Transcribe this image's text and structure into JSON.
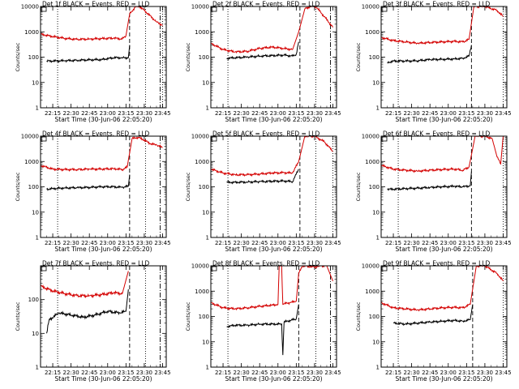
{
  "figure": {
    "xlabel": "Start Time (30-Jun-06 22:05:20)",
    "ylabel": "Counts/sec",
    "xticks": [
      "22:15",
      "22:30",
      "22:45",
      "23:00",
      "23:15",
      "23:30",
      "23:45"
    ]
  },
  "chart_data": [
    {
      "type": "line",
      "title": "Det 1f BLACK = Events, RED = LLD",
      "ylim": [
        1,
        10000
      ],
      "yscale": "log",
      "ytick_labels": [
        "1",
        "10",
        "100",
        "1000",
        "10000"
      ],
      "vlines": {
        "dotted": [
          "22:19",
          "23:31",
          "23:45"
        ],
        "dashed": [
          "23:18"
        ],
        "dashdot": [
          "23:43"
        ]
      },
      "colors": {
        "events": "#000000",
        "lld": "#d40000"
      },
      "series": [
        {
          "key": "events",
          "x": [
            "22:10",
            "22:15",
            "22:25",
            "22:35",
            "22:45",
            "22:55",
            "23:05",
            "23:12",
            "23:17",
            "23:18"
          ],
          "values": [
            70,
            70,
            72,
            75,
            78,
            80,
            95,
            95,
            95,
            300
          ]
        },
        {
          "key": "lld",
          "x": [
            "22:05",
            "22:15",
            "22:25",
            "22:35",
            "22:45",
            "22:55",
            "23:05",
            "23:12",
            "23:15",
            "23:18",
            "23:23",
            "23:26",
            "23:30",
            "23:40",
            "23:45"
          ],
          "values": [
            800,
            650,
            550,
            500,
            520,
            540,
            560,
            520,
            700,
            5000,
            10000,
            10000,
            7000,
            2500,
            1800
          ]
        }
      ]
    },
    {
      "type": "line",
      "title": "Det 2f BLACK = Events, RED = LLD",
      "ylim": [
        1,
        10000
      ],
      "yscale": "log",
      "ytick_labels": [
        "1",
        "10",
        "100",
        "1000",
        "10000"
      ],
      "vlines": {
        "dotted": [
          "22:19",
          "23:31"
        ],
        "dashed": [
          "23:18"
        ],
        "dashdot": [
          "23:43"
        ]
      },
      "colors": {
        "events": "#000000",
        "lld": "#d40000"
      },
      "series": [
        {
          "key": "events",
          "x": [
            "22:18",
            "22:25",
            "22:35",
            "22:45",
            "22:55",
            "23:05",
            "23:12",
            "23:15",
            "23:17"
          ],
          "values": [
            90,
            95,
            100,
            110,
            115,
            120,
            110,
            130,
            400
          ]
        },
        {
          "key": "lld",
          "x": [
            "22:05",
            "22:15",
            "22:25",
            "22:35",
            "22:45",
            "22:55",
            "23:05",
            "23:12",
            "23:17",
            "23:22",
            "23:27",
            "23:31",
            "23:38",
            "23:45"
          ],
          "values": [
            350,
            200,
            160,
            170,
            220,
            250,
            220,
            200,
            1000,
            8000,
            10000,
            10000,
            4000,
            1500
          ]
        }
      ]
    },
    {
      "type": "line",
      "title": "Det 3f BLACK = Events, RED = LLD",
      "ylim": [
        1,
        10000
      ],
      "yscale": "log",
      "ytick_labels": [
        "1",
        "10",
        "100",
        "1000",
        "10000"
      ],
      "vlines": {
        "dotted": [
          "22:19",
          "23:45"
        ],
        "dashed": [
          "23:19"
        ],
        "dashdot": []
      },
      "colors": {
        "events": "#000000",
        "lld": "#d40000"
      },
      "series": [
        {
          "key": "events",
          "x": [
            "22:10",
            "22:15",
            "22:25",
            "22:35",
            "22:45",
            "22:55",
            "23:05",
            "23:12",
            "23:17",
            "23:19"
          ],
          "values": [
            60,
            70,
            70,
            72,
            80,
            82,
            85,
            90,
            110,
            300
          ]
        },
        {
          "key": "lld",
          "x": [
            "22:05",
            "22:15",
            "22:25",
            "22:35",
            "22:45",
            "22:55",
            "23:05",
            "23:12",
            "23:17",
            "23:21",
            "23:30",
            "23:40",
            "23:45"
          ],
          "values": [
            600,
            450,
            400,
            350,
            380,
            400,
            420,
            400,
            500,
            10000,
            10000,
            7000,
            4000
          ]
        }
      ]
    },
    {
      "type": "line",
      "title": "Det 4f BLACK = Events, RED = LLD",
      "ylim": [
        1,
        10000
      ],
      "yscale": "log",
      "ytick_labels": [
        "1",
        "10",
        "100",
        "1000",
        "10000"
      ],
      "vlines": {
        "dotted": [
          "22:19",
          "23:31"
        ],
        "dashed": [
          "23:18"
        ],
        "dashdot": [
          "23:43"
        ]
      },
      "colors": {
        "events": "#000000",
        "lld": "#d40000"
      },
      "series": [
        {
          "key": "events",
          "x": [
            "22:10",
            "22:15",
            "22:25",
            "22:35",
            "22:45",
            "22:55",
            "23:05",
            "23:12",
            "23:17",
            "23:18"
          ],
          "values": [
            80,
            85,
            90,
            92,
            95,
            100,
            100,
            95,
            105,
            300
          ]
        },
        {
          "key": "lld",
          "x": [
            "22:05",
            "22:15",
            "22:25",
            "22:35",
            "22:45",
            "22:55",
            "23:05",
            "23:12",
            "23:16",
            "23:20",
            "23:25",
            "23:30",
            "23:35",
            "23:40",
            "23:45"
          ],
          "values": [
            700,
            500,
            480,
            480,
            500,
            500,
            520,
            480,
            600,
            8000,
            9000,
            7000,
            5000,
            4500,
            3500
          ]
        }
      ]
    },
    {
      "type": "line",
      "title": "Det 5f BLACK = Events, RED = LLD",
      "ylim": [
        1,
        10000
      ],
      "yscale": "log",
      "ytick_labels": [
        "1",
        "10",
        "100",
        "1000",
        "10000"
      ],
      "vlines": {
        "dotted": [
          "22:19",
          "23:31",
          "23:45"
        ],
        "dashed": [
          "23:18"
        ],
        "dashdot": []
      },
      "colors": {
        "events": "#000000",
        "lld": "#d40000"
      },
      "series": [
        {
          "key": "events",
          "x": [
            "22:18",
            "22:25",
            "22:35",
            "22:45",
            "22:55",
            "23:05",
            "23:12",
            "23:17"
          ],
          "values": [
            150,
            150,
            155,
            160,
            165,
            170,
            160,
            500
          ]
        },
        {
          "key": "lld",
          "x": [
            "22:05",
            "22:15",
            "22:25",
            "22:35",
            "22:45",
            "22:55",
            "23:05",
            "23:12",
            "23:17",
            "23:22",
            "23:30",
            "23:38",
            "23:45"
          ],
          "values": [
            500,
            350,
            300,
            300,
            320,
            350,
            360,
            350,
            1000,
            10000,
            10000,
            6000,
            2500
          ]
        }
      ]
    },
    {
      "type": "line",
      "title": "Det 6f BLACK = Events, RED = LLD",
      "ylim": [
        1,
        10000
      ],
      "yscale": "log",
      "ytick_labels": [
        "1",
        "10",
        "100",
        "1000",
        "10000"
      ],
      "vlines": {
        "dotted": [
          "22:19",
          "23:45"
        ],
        "dashed": [
          "23:19"
        ],
        "dashdot": []
      },
      "colors": {
        "events": "#000000",
        "lld": "#d40000"
      },
      "series": [
        {
          "key": "events",
          "x": [
            "22:10",
            "22:15",
            "22:25",
            "22:35",
            "22:45",
            "22:55",
            "23:05",
            "23:12",
            "23:18",
            "23:19"
          ],
          "values": [
            80,
            80,
            85,
            88,
            95,
            100,
            105,
            100,
            110,
            400
          ]
        },
        {
          "key": "lld",
          "x": [
            "22:05",
            "22:15",
            "22:25",
            "22:35",
            "22:45",
            "22:55",
            "23:05",
            "23:12",
            "23:17",
            "23:22",
            "23:30",
            "23:36",
            "23:40",
            "23:43",
            "23:45"
          ],
          "values": [
            700,
            500,
            450,
            420,
            450,
            480,
            500,
            450,
            600,
            10000,
            10000,
            8000,
            1500,
            800,
            10000
          ]
        }
      ]
    },
    {
      "type": "line",
      "title": "Det 7f BLACK = Events, RED = LLD",
      "ylim": [
        1,
        1000
      ],
      "yscale": "log",
      "ytick_labels": [
        "1",
        "10",
        "100"
      ],
      "vlines": {
        "dotted": [
          "22:19",
          "23:31"
        ],
        "dashed": [
          "23:18"
        ],
        "dashdot": [
          "23:43"
        ]
      },
      "colors": {
        "events": "#000000",
        "lld": "#d40000"
      },
      "series": [
        {
          "key": "events",
          "x": [
            "22:10",
            "22:12",
            "22:20",
            "22:30",
            "22:40",
            "22:50",
            "23:00",
            "23:10",
            "23:15",
            "23:17"
          ],
          "values": [
            10,
            25,
            40,
            35,
            30,
            35,
            45,
            40,
            45,
            200
          ]
        },
        {
          "key": "lld",
          "x": [
            "22:05",
            "22:15",
            "22:25",
            "22:35",
            "22:45",
            "22:55",
            "23:05",
            "23:12",
            "23:17"
          ],
          "values": [
            250,
            180,
            150,
            130,
            130,
            140,
            160,
            150,
            700
          ]
        }
      ]
    },
    {
      "type": "line",
      "title": "Det 8f BLACK = Events, RED = LLD",
      "ylim": [
        1,
        10000
      ],
      "yscale": "log",
      "ytick_labels": [
        "1",
        "10",
        "100",
        "1000",
        "10000"
      ],
      "vlines": {
        "dotted": [
          "22:19",
          "23:31"
        ],
        "dashed": [
          "23:17"
        ],
        "dashdot": [
          "23:43"
        ]
      },
      "colors": {
        "events": "#000000",
        "lld": "#d40000"
      },
      "series": [
        {
          "key": "events",
          "x": [
            "22:18",
            "22:25",
            "22:35",
            "22:45",
            "22:55",
            "23:03",
            "23:04",
            "23:05",
            "23:10",
            "23:15",
            "23:17"
          ],
          "values": [
            40,
            45,
            45,
            50,
            50,
            50,
            3,
            60,
            70,
            80,
            300
          ]
        },
        {
          "key": "lld",
          "x": [
            "22:05",
            "22:15",
            "22:25",
            "22:35",
            "22:45",
            "22:55",
            "23:00",
            "23:01",
            "23:03",
            "23:04",
            "23:05",
            "23:10",
            "23:15",
            "23:17",
            "23:20",
            "23:30",
            "23:35",
            "23:40",
            "23:45"
          ],
          "values": [
            350,
            220,
            200,
            220,
            250,
            280,
            300,
            10000,
            10000,
            300,
            320,
            350,
            400,
            5000,
            10000,
            9000,
            10000,
            10000,
            2500
          ]
        }
      ]
    },
    {
      "type": "line",
      "title": "Det 9f BLACK = Events, RED = LLD",
      "ylim": [
        1,
        10000
      ],
      "yscale": "log",
      "ytick_labels": [
        "1",
        "10",
        "100",
        "1000",
        "10000"
      ],
      "vlines": {
        "dotted": [
          "22:19",
          "23:45"
        ],
        "dashed": [
          "23:20"
        ],
        "dashdot": []
      },
      "colors": {
        "events": "#000000",
        "lld": "#d40000"
      },
      "series": [
        {
          "key": "events",
          "x": [
            "22:15",
            "22:25",
            "22:35",
            "22:45",
            "22:55",
            "23:05",
            "23:12",
            "23:18",
            "23:20"
          ],
          "values": [
            55,
            50,
            55,
            60,
            65,
            70,
            65,
            75,
            300
          ]
        },
        {
          "key": "lld",
          "x": [
            "22:05",
            "22:15",
            "22:25",
            "22:35",
            "22:45",
            "22:55",
            "23:05",
            "23:12",
            "23:18",
            "23:23",
            "23:30",
            "23:40",
            "23:45"
          ],
          "values": [
            350,
            220,
            200,
            180,
            200,
            220,
            230,
            220,
            300,
            10000,
            10000,
            5000,
            2500
          ]
        }
      ]
    }
  ]
}
